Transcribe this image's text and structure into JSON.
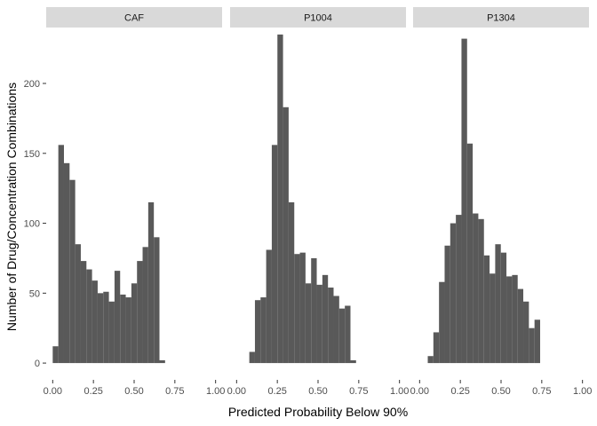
{
  "chart_data": {
    "type": "bar",
    "subtype": "faceted-histogram",
    "xlabel": "Predicted Probability Below 90%",
    "ylabel": "Number of Drug/Concentration Combinations",
    "xlim": [
      -0.04,
      1.04
    ],
    "ylim": [
      -12,
      240
    ],
    "x_ticks": [
      0,
      0.25,
      0.5,
      0.75,
      1
    ],
    "x_tick_labels": [
      "0.00",
      "0.25",
      "0.50",
      "0.75",
      "1.00"
    ],
    "y_ticks": [
      0,
      50,
      100,
      150,
      200
    ],
    "y_tick_labels": [
      "0",
      "50",
      "100",
      "150",
      "200"
    ],
    "bin_width": 0.0345,
    "bar_color": "#595959",
    "strip_color": "#d9d9d9",
    "facets": [
      {
        "name": "CAF",
        "bins_start": 0.0,
        "values": [
          12,
          156,
          143,
          131,
          85,
          73,
          67,
          59,
          50,
          51,
          44,
          66,
          49,
          47,
          57,
          73,
          83,
          115,
          90,
          2
        ]
      },
      {
        "name": "P1004",
        "bins_start": 0.078,
        "values": [
          8,
          45,
          47,
          81,
          156,
          235,
          183,
          115,
          78,
          79,
          57,
          75,
          56,
          63,
          54,
          48,
          39,
          41,
          2
        ]
      },
      {
        "name": "P1304",
        "bins_start": 0.05,
        "values": [
          5,
          22,
          58,
          84,
          100,
          106,
          232,
          157,
          107,
          103,
          77,
          64,
          85,
          79,
          62,
          63,
          53,
          44,
          25,
          31
        ]
      }
    ]
  }
}
